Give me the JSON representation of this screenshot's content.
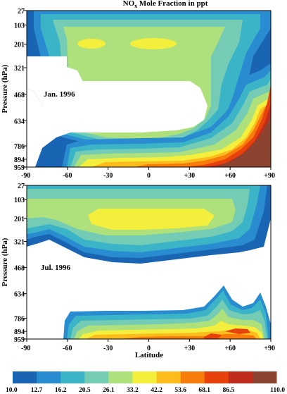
{
  "chart_data": [
    {
      "type": "heatmap",
      "title": "NOx Mole Fraction in ppt",
      "title_parts": {
        "pre": "NO",
        "sub": "x",
        "post": " Mole Fraction in ppt"
      },
      "panel_label": "Jan. 1996",
      "ylabel": "Pressure (hPa)",
      "xlabel": "",
      "x_ticks": [
        "-90",
        "-60",
        "-30",
        "0",
        "+30",
        "+60",
        "+90"
      ],
      "x_tick_values": [
        -90,
        -60,
        -30,
        0,
        30,
        60,
        90
      ],
      "y_ticks": [
        "27",
        "103",
        "201",
        "321",
        "468",
        "634",
        "786",
        "894",
        "959"
      ],
      "y_tick_values": [
        27,
        103,
        201,
        321,
        468,
        634,
        786,
        894,
        959
      ],
      "xlim": [
        -90,
        90
      ],
      "ylim": [
        959,
        27
      ],
      "y_scale": "pressure",
      "cells": [
        {
          "lat": -90,
          "p": 27,
          "v": 10.0
        },
        {
          "lat": -60,
          "p": 103,
          "v": 12.7
        },
        {
          "lat": -40,
          "p": 201,
          "v": 16.2
        },
        {
          "lat": -30,
          "p": 201,
          "v": 26.1
        },
        {
          "lat": 0,
          "p": 201,
          "v": 26.1
        },
        {
          "lat": 30,
          "p": 201,
          "v": 20.5
        },
        {
          "lat": 60,
          "p": 201,
          "v": 16.2
        },
        {
          "lat": 80,
          "p": 321,
          "v": 16.2
        },
        {
          "lat": 80,
          "p": 468,
          "v": 42.2
        },
        {
          "lat": 85,
          "p": 634,
          "v": 86.5
        },
        {
          "lat": 80,
          "p": 894,
          "v": 86.5
        },
        {
          "lat": 40,
          "p": 894,
          "v": 53.6
        },
        {
          "lat": 10,
          "p": 894,
          "v": 53.6
        },
        {
          "lat": -20,
          "p": 894,
          "v": 33.2
        },
        {
          "lat": -40,
          "p": 894,
          "v": 16.2
        }
      ]
    },
    {
      "type": "heatmap",
      "panel_label": "Jul. 1996",
      "ylabel": "Pressure (hPa)",
      "xlabel": "Latitude",
      "x_ticks": [
        "-90",
        "-60",
        "-30",
        "0",
        "+30",
        "+60",
        "+90"
      ],
      "x_tick_values": [
        -90,
        -60,
        -30,
        0,
        30,
        60,
        90
      ],
      "y_ticks": [
        "27",
        "103",
        "201",
        "321",
        "468",
        "634",
        "786",
        "894",
        "959"
      ],
      "y_tick_values": [
        27,
        103,
        201,
        321,
        468,
        634,
        786,
        894,
        959
      ],
      "xlim": [
        -90,
        90
      ],
      "ylim": [
        959,
        27
      ],
      "y_scale": "pressure",
      "cells": [
        {
          "lat": -90,
          "p": 27,
          "v": 10.0
        },
        {
          "lat": -60,
          "p": 103,
          "v": 16.2
        },
        {
          "lat": -10,
          "p": 201,
          "v": 26.1
        },
        {
          "lat": 10,
          "p": 201,
          "v": 26.1
        },
        {
          "lat": 60,
          "p": 201,
          "v": 16.2
        },
        {
          "lat": 85,
          "p": 103,
          "v": 10.0
        },
        {
          "lat": -40,
          "p": 894,
          "v": 16.2
        },
        {
          "lat": -20,
          "p": 894,
          "v": 33.2
        },
        {
          "lat": 10,
          "p": 894,
          "v": 42.2
        },
        {
          "lat": 30,
          "p": 894,
          "v": 53.6
        },
        {
          "lat": 55,
          "p": 894,
          "v": 68.1
        }
      ]
    }
  ],
  "colorbar": {
    "labels": [
      "10.0",
      "12.7",
      "16.2",
      "20.5",
      "26.1",
      "33.2",
      "42.2",
      "53.6",
      "68.1",
      "86.5",
      "110.0"
    ],
    "colors": [
      "#1a64b4",
      "#2a8cd0",
      "#3cb4c8",
      "#74ccb4",
      "#aee07c",
      "#f4ee3c",
      "#fcbc1c",
      "#f87c0c",
      "#e8420c",
      "#c02c1c",
      "#8c4430"
    ]
  }
}
